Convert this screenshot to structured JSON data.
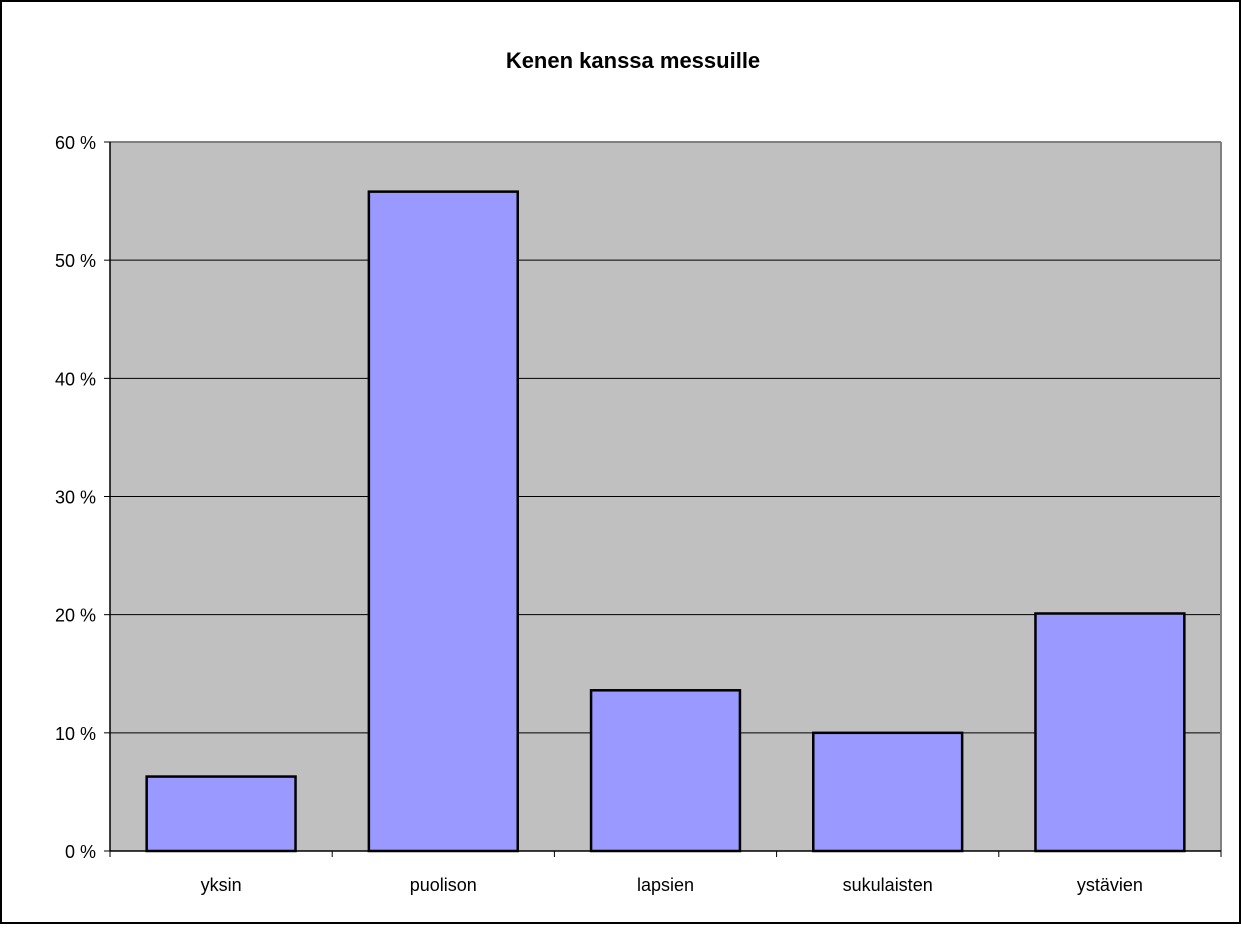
{
  "chart_data": {
    "type": "bar",
    "title": "Kenen kanssa messuille",
    "xlabel": "",
    "ylabel": "",
    "categories": [
      "yksin",
      "puolison",
      "lapsien",
      "sukulaisten",
      "ystävien"
    ],
    "values": [
      6.3,
      55.8,
      13.6,
      10.0,
      20.1
    ],
    "ylim": [
      0,
      60
    ],
    "yticks": [
      0,
      10,
      20,
      30,
      40,
      50,
      60
    ],
    "ytick_labels": [
      "0 %",
      "10 %",
      "20 %",
      "30 %",
      "40 %",
      "50 %",
      "60 %"
    ],
    "grid": true,
    "legend": "none",
    "colors": {
      "bar_fill": "#9999ff",
      "bar_stroke": "#000000",
      "plot_background": "#c0c0c0",
      "gridline": "#000000",
      "frame": "#000000"
    }
  }
}
